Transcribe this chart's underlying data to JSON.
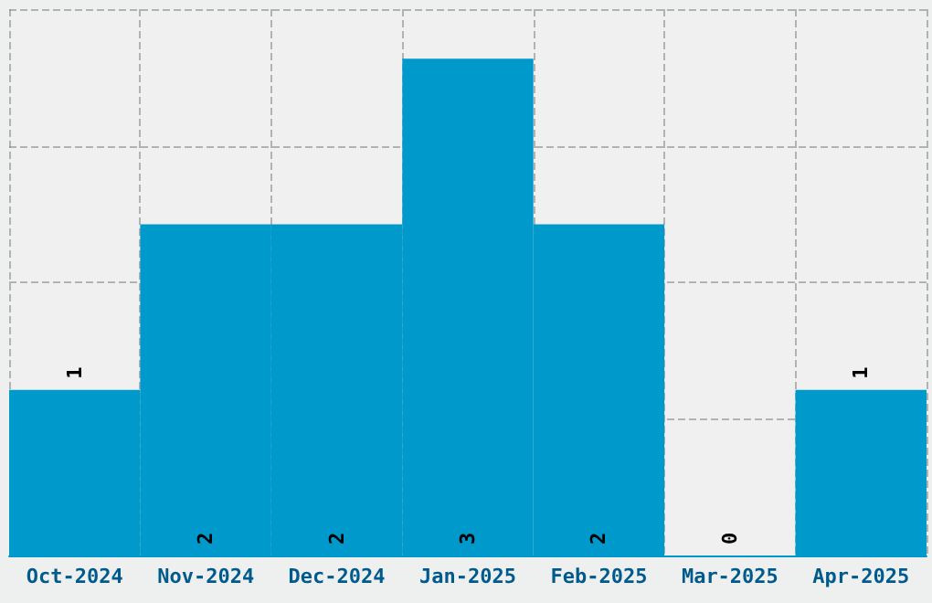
{
  "chart_data": {
    "type": "bar",
    "categories": [
      "Oct-2024",
      "Nov-2024",
      "Dec-2024",
      "Jan-2025",
      "Feb-2025",
      "Mar-2025",
      "Apr-2025"
    ],
    "values": [
      1,
      2,
      2,
      3,
      2,
      0,
      1
    ],
    "color": "#0099cc",
    "data_labels": true,
    "grid": true,
    "tick_labels": "x"
  }
}
